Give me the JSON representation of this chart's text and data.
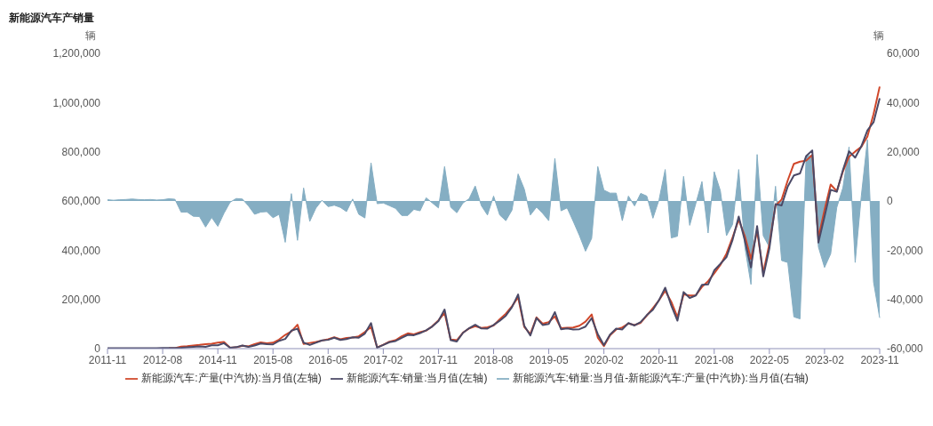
{
  "chart_data": {
    "type": "line",
    "title": "新能源汽车产销量",
    "ylabel": "辆",
    "y2label": "辆",
    "categories": [
      "2011-11",
      null,
      null,
      null,
      null,
      null,
      null,
      null,
      null,
      "2012-08",
      null,
      null,
      null,
      null,
      null,
      null,
      null,
      null,
      "2014-11",
      null,
      null,
      null,
      null,
      null,
      null,
      null,
      null,
      "2015-08",
      null,
      null,
      null,
      null,
      null,
      null,
      null,
      null,
      "2016-05",
      null,
      null,
      null,
      null,
      null,
      null,
      null,
      null,
      "2017-02",
      null,
      null,
      null,
      null,
      null,
      null,
      null,
      null,
      "2017-11",
      null,
      null,
      null,
      null,
      null,
      null,
      null,
      null,
      "2018-08",
      null,
      null,
      null,
      null,
      null,
      null,
      null,
      null,
      "2019-05",
      null,
      null,
      null,
      null,
      null,
      null,
      null,
      null,
      "2020-02",
      null,
      null,
      null,
      null,
      null,
      null,
      null,
      null,
      "2020-11",
      null,
      null,
      null,
      null,
      null,
      null,
      null,
      null,
      "2021-08",
      null,
      null,
      null,
      null,
      null,
      null,
      null,
      null,
      "2022-05",
      null,
      null,
      null,
      null,
      null,
      null,
      null,
      null,
      "2023-02",
      null,
      null,
      null,
      null,
      null,
      null,
      null,
      null,
      "2023-11"
    ],
    "series": [
      {
        "name": "新能源汽车:销量:当月值-新能源汽车:产量(中汽协):当月值(右轴)",
        "type": "area",
        "axis": "y2",
        "color": "#85aec3",
        "values": [
          500,
          300,
          500,
          600,
          800,
          600,
          500,
          600,
          400,
          500,
          900,
          700,
          -4500,
          -4500,
          -6200,
          -6300,
          -10600,
          -6700,
          -10300,
          -5000,
          -500,
          1000,
          800,
          -2000,
          -5400,
          -4500,
          -4300,
          -6800,
          -5400,
          -16800,
          3000,
          -16000,
          5300,
          -8300,
          -2900,
          300,
          -2300,
          -1700,
          -2600,
          -4300,
          800,
          -5400,
          -6900,
          15500,
          -1100,
          -800,
          -1900,
          -3000,
          -5900,
          -5900,
          -3400,
          -4000,
          1300,
          -800,
          -2800,
          14000,
          -2500,
          -4800,
          -800,
          900,
          6100,
          -1900,
          -5700,
          2000,
          -5700,
          -8000,
          -3700,
          11000,
          4900,
          -5700,
          -2500,
          -5000,
          -8000,
          17300,
          -4000,
          -2800,
          -8300,
          -14000,
          -20400,
          -15200,
          14000,
          4400,
          3200,
          3200,
          -8000,
          2000,
          -2000,
          3100,
          2000,
          -7000,
          500,
          12800,
          -15000,
          -14300,
          10000,
          -9900,
          -1000,
          7900,
          -13000,
          11900,
          4200,
          -14100,
          -9500,
          12800,
          -18700,
          -33900,
          18900,
          -14100,
          -18700,
          6000,
          -24200,
          -25000,
          -47100,
          -47900,
          18200,
          18600,
          -18700,
          -27000,
          -21500,
          -2600,
          5400,
          22000,
          -25000,
          2000,
          24900,
          -33000,
          -47500
        ]
      },
      {
        "name": "新能源汽车:产量(中汽协):当月值(左轴)",
        "axis": "y",
        "color": "#d0472a",
        "values": [
          null,
          null,
          null,
          null,
          null,
          null,
          null,
          null,
          null,
          null,
          2000,
          2000,
          8000,
          10000,
          13000,
          15000,
          18000,
          20000,
          24000,
          27000,
          4000,
          5000,
          12000,
          9000,
          18000,
          25000,
          22000,
          24000,
          37000,
          56000,
          70000,
          97000,
          19000,
          23000,
          27000,
          33000,
          38000,
          46000,
          38000,
          43000,
          45000,
          50000,
          68000,
          88000,
          5000,
          16000,
          28000,
          34000,
          50000,
          62000,
          58000,
          67000,
          73000,
          91000,
          115000,
          145000,
          37000,
          34000,
          65000,
          82000,
          91000,
          84000,
          87000,
          94000,
          119000,
          142000,
          172000,
          209000,
          88000,
          59000,
          127000,
          101000,
          108000,
          131000,
          83000,
          85000,
          86000,
          93000,
          110000,
          139000,
          45000,
          10000,
          54000,
          78000,
          86000,
          102000,
          96000,
          105000,
          134000,
          165000,
          197000,
          235000,
          190000,
          128000,
          220000,
          216000,
          217000,
          251000,
          274000,
          306000,
          340000,
          386000,
          452000,
          524000,
          457000,
          364000,
          479000,
          308000,
          426000,
          581000,
          606000,
          684000,
          751000,
          760000,
          764000,
          787000,
          450000,
          564000,
          667000,
          640000,
          720000,
          780000,
          801000,
          820000,
          862000,
          953000,
          1065000
        ]
      },
      {
        "name": "新能源汽车:销量:当月值(左轴)",
        "axis": "y",
        "color": "#4b4966",
        "values": [
          2000,
          2000,
          2000,
          2000,
          2000,
          2000,
          2000,
          2000,
          2000,
          3000,
          3000,
          3000,
          3500,
          5500,
          7000,
          9000,
          7400,
          13300,
          13700,
          22000,
          3500,
          6000,
          12800,
          7000,
          12600,
          20500,
          17700,
          17200,
          31600,
          39200,
          73000,
          81000,
          24300,
          14700,
          24100,
          33300,
          35700,
          44300,
          35400,
          38700,
          45800,
          44600,
          61100,
          103500,
          3900,
          15200,
          26100,
          31000,
          44100,
          56100,
          54600,
          63000,
          74300,
          90200,
          112200,
          159000,
          34500,
          29200,
          64200,
          82900,
          97100,
          82100,
          81300,
          96000,
          113300,
          134000,
          168300,
          220000,
          92900,
          53300,
          124500,
          96000,
          100000,
          148300,
          79000,
          82200,
          77700,
          79000,
          89600,
          123800,
          59000,
          14400,
          57200,
          81200,
          78000,
          104000,
          94000,
          108100,
          136000,
          158000,
          197500,
          247800,
          175000,
          113700,
          230000,
          206100,
          216000,
          258900,
          261000,
          317900,
          344200,
          371900,
          442500,
          536800,
          438300,
          330100,
          497900,
          293900,
          407300,
          587000,
          581800,
          659000,
          703900,
          712100,
          782200,
          805600,
          431300,
          537000,
          645500,
          637400,
          725400,
          802000,
          776000,
          822000,
          886900,
          920000,
          1017500
        ]
      }
    ],
    "ylim": [
      0,
      1200000
    ],
    "yticks": [
      0,
      {
        "value": 200000,
        "label": "200,000"
      },
      {
        "value": 400000,
        "label": "400,000"
      },
      {
        "value": 600000,
        "label": "600,000"
      },
      {
        "value": 800000,
        "label": "800,000"
      },
      {
        "value": 1000000,
        "label": "1,000,000"
      },
      {
        "value": 1200000,
        "label": "1,200,000"
      }
    ],
    "y2lim": [
      -60000,
      60000
    ],
    "y2ticks": [
      {
        "value": -60000,
        "label": "-60,000"
      },
      {
        "value": -40000,
        "label": "-40,000"
      },
      {
        "value": -20000,
        "label": "-20,000"
      },
      0,
      {
        "value": 20000,
        "label": "20,000"
      },
      {
        "value": 40000,
        "label": "40,000"
      },
      {
        "value": 60000,
        "label": "60,000"
      }
    ],
    "legend": "bottom"
  }
}
